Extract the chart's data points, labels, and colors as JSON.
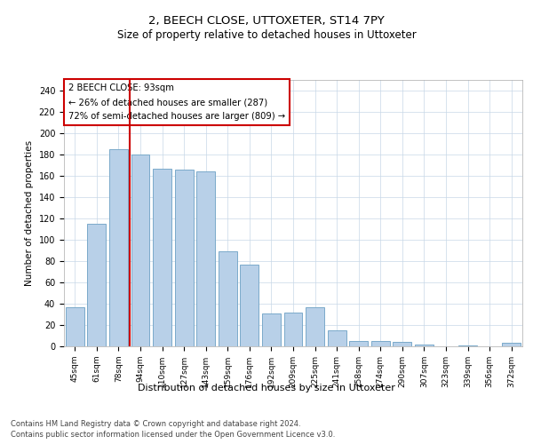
{
  "title": "2, BEECH CLOSE, UTTOXETER, ST14 7PY",
  "subtitle": "Size of property relative to detached houses in Uttoxeter",
  "xlabel": "Distribution of detached houses by size in Uttoxeter",
  "ylabel": "Number of detached properties",
  "categories": [
    "45sqm",
    "61sqm",
    "78sqm",
    "94sqm",
    "110sqm",
    "127sqm",
    "143sqm",
    "159sqm",
    "176sqm",
    "192sqm",
    "209sqm",
    "225sqm",
    "241sqm",
    "258sqm",
    "274sqm",
    "290sqm",
    "307sqm",
    "323sqm",
    "339sqm",
    "356sqm",
    "372sqm"
  ],
  "values": [
    37,
    115,
    185,
    180,
    167,
    166,
    164,
    89,
    77,
    31,
    32,
    37,
    15,
    5,
    5,
    4,
    2,
    0,
    1,
    0,
    3
  ],
  "bar_color": "#b8d0e8",
  "bar_edge_color": "#7aaaca",
  "property_index": 3,
  "annotation_line1": "2 BEECH CLOSE: 93sqm",
  "annotation_line2": "← 26% of detached houses are smaller (287)",
  "annotation_line3": "72% of semi-detached houses are larger (809) →",
  "red_line_color": "#cc0000",
  "annotation_box_color": "#ffffff",
  "annotation_box_edge": "#cc0000",
  "ylim": [
    0,
    250
  ],
  "yticks": [
    0,
    20,
    40,
    60,
    80,
    100,
    120,
    140,
    160,
    180,
    200,
    220,
    240
  ],
  "footnote1": "Contains HM Land Registry data © Crown copyright and database right 2024.",
  "footnote2": "Contains public sector information licensed under the Open Government Licence v3.0.",
  "background_color": "#ffffff",
  "grid_color": "#c8d8e8"
}
